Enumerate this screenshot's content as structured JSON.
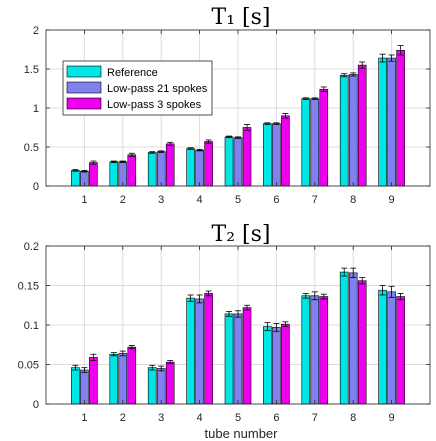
{
  "chart_data": [
    {
      "type": "bar",
      "title": "T₁ [s]",
      "xlabel": "",
      "ylabel": "",
      "categories": [
        "1",
        "2",
        "3",
        "4",
        "5",
        "6",
        "7",
        "8",
        "9"
      ],
      "ylim": [
        0,
        2
      ],
      "yticks": [
        "0",
        "0.5",
        "1",
        "1.5",
        "2"
      ],
      "ytick_values": [
        0,
        0.5,
        1,
        1.5,
        2
      ],
      "grid": true,
      "legend_position": "top-left",
      "series": [
        {
          "name": "Reference",
          "color": "#00e5e5",
          "values": [
            0.2,
            0.31,
            0.43,
            0.48,
            0.63,
            0.8,
            1.12,
            1.42,
            1.64
          ],
          "errors": [
            0.01,
            0.01,
            0.01,
            0.01,
            0.01,
            0.01,
            0.01,
            0.02,
            0.05
          ]
        },
        {
          "name": "Low-pass 21 spokes",
          "color": "#8080ee",
          "values": [
            0.19,
            0.31,
            0.44,
            0.46,
            0.62,
            0.8,
            1.12,
            1.43,
            1.64
          ],
          "errors": [
            0.01,
            0.01,
            0.01,
            0.01,
            0.01,
            0.01,
            0.01,
            0.02,
            0.04
          ]
        },
        {
          "name": "Low-pass 3 spokes",
          "color": "#ee00ee",
          "values": [
            0.3,
            0.4,
            0.54,
            0.57,
            0.75,
            0.9,
            1.24,
            1.55,
            1.74
          ],
          "errors": [
            0.02,
            0.02,
            0.02,
            0.02,
            0.04,
            0.03,
            0.03,
            0.04,
            0.06
          ]
        }
      ]
    },
    {
      "type": "bar",
      "title": "T₂ [s]",
      "xlabel": "tube number",
      "ylabel": "",
      "categories": [
        "1",
        "2",
        "3",
        "4",
        "5",
        "6",
        "7",
        "8",
        "9"
      ],
      "ylim": [
        0,
        0.2
      ],
      "yticks": [
        "0",
        "0.05",
        "0.1",
        "0.15",
        "0.2"
      ],
      "ytick_values": [
        0,
        0.05,
        0.1,
        0.15,
        0.2
      ],
      "grid": true,
      "series": [
        {
          "name": "Reference",
          "color": "#00e5e5",
          "values": [
            0.046,
            0.063,
            0.046,
            0.134,
            0.114,
            0.098,
            0.137,
            0.167,
            0.144
          ],
          "errors": [
            0.003,
            0.002,
            0.003,
            0.004,
            0.003,
            0.005,
            0.003,
            0.005,
            0.006
          ]
        },
        {
          "name": "Low-pass 21 spokes",
          "color": "#8080ee",
          "values": [
            0.043,
            0.064,
            0.045,
            0.133,
            0.114,
            0.097,
            0.137,
            0.166,
            0.142
          ],
          "errors": [
            0.003,
            0.003,
            0.003,
            0.005,
            0.004,
            0.005,
            0.005,
            0.006,
            0.007
          ]
        },
        {
          "name": "Low-pass 3 spokes",
          "color": "#ee00ee",
          "values": [
            0.059,
            0.072,
            0.053,
            0.14,
            0.122,
            0.101,
            0.136,
            0.156,
            0.136
          ],
          "errors": [
            0.004,
            0.002,
            0.002,
            0.003,
            0.003,
            0.003,
            0.003,
            0.004,
            0.004
          ]
        }
      ]
    }
  ]
}
